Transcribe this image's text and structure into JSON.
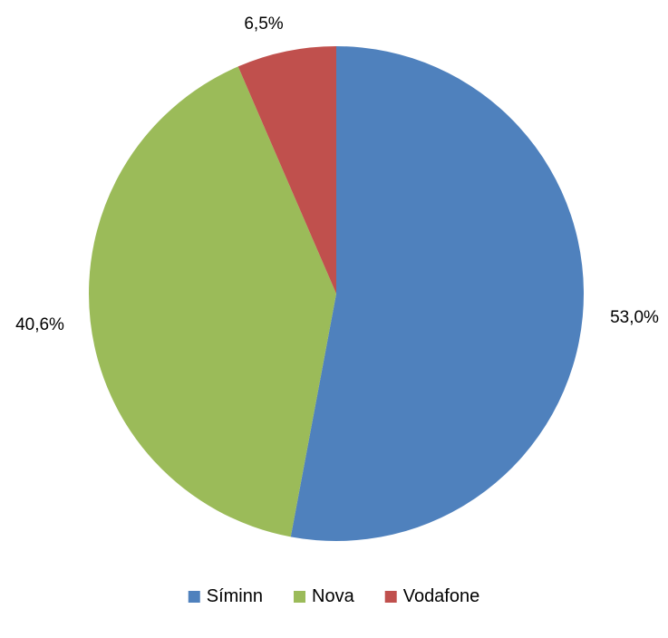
{
  "chart_data": {
    "type": "pie",
    "title": "",
    "categories": [
      "Síminn",
      "Nova",
      "Vodafone"
    ],
    "values": [
      53.0,
      40.6,
      6.5
    ],
    "data_labels": [
      "53,0%",
      "40,6%",
      "6,5%"
    ],
    "colors": [
      "#4F81BD",
      "#9BBB59",
      "#C0504D"
    ],
    "start_angle_deg": 0,
    "direction": "clockwise",
    "legend": {
      "position": "bottom",
      "entries": [
        "Síminn",
        "Nova",
        "Vodafone"
      ]
    }
  }
}
